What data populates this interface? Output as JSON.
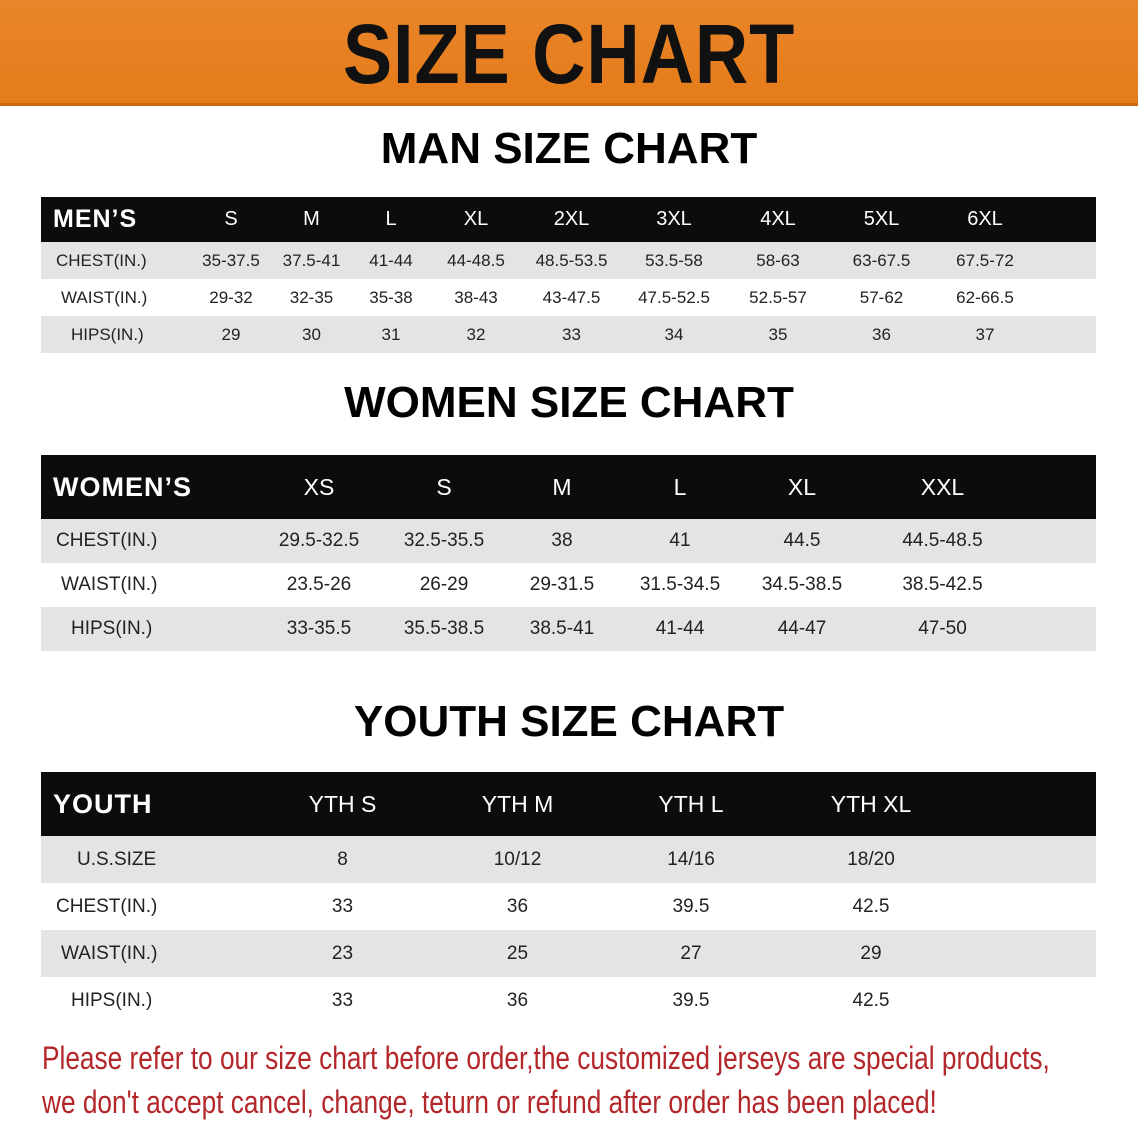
{
  "banner": {
    "title": "SIZE CHART",
    "color": "#e8801e"
  },
  "men": {
    "title": "MAN SIZE CHART",
    "headers": [
      "MEN’S",
      "S",
      "M",
      "L",
      "XL",
      "2XL",
      "3XL",
      "4XL",
      "5XL",
      "6XL",
      ""
    ],
    "rows": [
      [
        "CHEST(IN.)",
        "35-37.5",
        "37.5-41",
        "41-44",
        "44-48.5",
        "48.5-53.5",
        "53.5-58",
        "58-63",
        "63-67.5",
        "67.5-72",
        ""
      ],
      [
        "WAIST(IN.)",
        "29-32",
        "32-35",
        "35-38",
        "38-43",
        "43-47.5",
        "47.5-52.5",
        "52.5-57",
        "57-62",
        "62-66.5",
        ""
      ],
      [
        "HIPS(IN.)",
        "29",
        "30",
        "31",
        "32",
        "33",
        "34",
        "35",
        "36",
        "37",
        ""
      ]
    ]
  },
  "women": {
    "title": "WOMEN SIZE CHART",
    "headers": [
      "WOMEN’S",
      "XS",
      "S",
      "M",
      "L",
      "XL",
      "XXL",
      ""
    ],
    "rows": [
      [
        "CHEST(IN.)",
        "29.5-32.5",
        "32.5-35.5",
        "38",
        "41",
        "44.5",
        "44.5-48.5",
        ""
      ],
      [
        "WAIST(IN.)",
        "23.5-26",
        "26-29",
        "29-31.5",
        "31.5-34.5",
        "34.5-38.5",
        "38.5-42.5",
        ""
      ],
      [
        "HIPS(IN.)",
        "33-35.5",
        "35.5-38.5",
        "38.5-41",
        "41-44",
        "44-47",
        "47-50",
        ""
      ]
    ]
  },
  "youth": {
    "title": "YOUTH SIZE CHART",
    "headers": [
      "YOUTH",
      "YTH S",
      "YTH M",
      "YTH L",
      "YTH XL",
      ""
    ],
    "rows": [
      [
        "U.S.SIZE",
        "8",
        "10/12",
        "14/16",
        "18/20",
        ""
      ],
      [
        "CHEST(IN.)",
        "33",
        "36",
        "39.5",
        "42.5",
        ""
      ],
      [
        "WAIST(IN.)",
        "23",
        "25",
        "27",
        "29",
        ""
      ],
      [
        "HIPS(IN.)",
        "33",
        "36",
        "39.5",
        "42.5",
        ""
      ]
    ]
  },
  "note": {
    "line1": "Please refer to our size chart before order,the customized jerseys are special products,",
    "line2": "we don't accept cancel, change, teturn or refund after order has been placed!",
    "color": "#b3262a"
  }
}
